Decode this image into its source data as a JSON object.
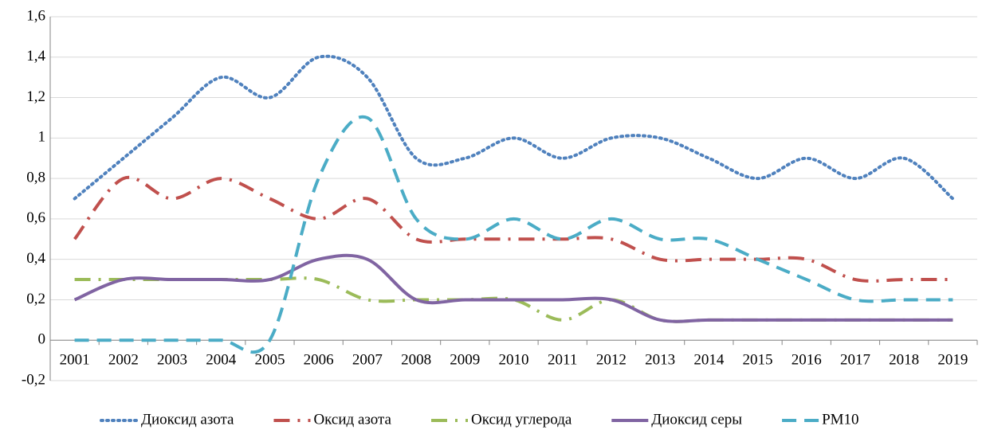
{
  "chart_data": {
    "type": "line",
    "categories": [
      "2001",
      "2002",
      "2003",
      "2004",
      "2005",
      "2006",
      "2007",
      "2008",
      "2009",
      "2010",
      "2011",
      "2012",
      "2013",
      "2014",
      "2015",
      "2016",
      "2017",
      "2018",
      "2019"
    ],
    "series": [
      {
        "name": "Диоксид азота",
        "color": "#4f81bd",
        "style": "dotted",
        "values": [
          0.7,
          0.9,
          1.1,
          1.3,
          1.2,
          1.4,
          1.3,
          0.9,
          0.9,
          1.0,
          0.9,
          1.0,
          1.0,
          0.9,
          0.8,
          0.9,
          0.8,
          0.9,
          0.7
        ]
      },
      {
        "name": "Оксид азота",
        "color": "#c0504d",
        "style": "dash-dot",
        "values": [
          0.5,
          0.8,
          0.7,
          0.8,
          0.7,
          0.6,
          0.7,
          0.5,
          0.5,
          0.5,
          0.5,
          0.5,
          0.4,
          0.4,
          0.4,
          0.4,
          0.3,
          0.3,
          0.3
        ]
      },
      {
        "name": "Оксид углерода",
        "color": "#9bbb59",
        "style": "dash-dot",
        "values": [
          0.3,
          0.3,
          0.3,
          0.3,
          0.3,
          0.3,
          0.2,
          0.2,
          0.2,
          0.2,
          0.1,
          0.2,
          0.1,
          0.1,
          0.1,
          0.1,
          0.1,
          0.1,
          0.1
        ]
      },
      {
        "name": "Диоксид серы",
        "color": "#8064a2",
        "style": "solid",
        "values": [
          0.2,
          0.3,
          0.3,
          0.3,
          0.3,
          0.4,
          0.4,
          0.2,
          0.2,
          0.2,
          0.2,
          0.2,
          0.1,
          0.1,
          0.1,
          0.1,
          0.1,
          0.1,
          0.1
        ]
      },
      {
        "name": "PM10",
        "color": "#4bacc6",
        "style": "dashed",
        "values": [
          0,
          0,
          0,
          0,
          0,
          0.8,
          1.1,
          0.6,
          0.5,
          0.6,
          0.5,
          0.6,
          0.5,
          0.5,
          0.4,
          0.3,
          0.2,
          0.2,
          0.2
        ]
      }
    ],
    "ylim": [
      -0.2,
      1.6
    ],
    "yticks": [
      {
        "value": -0.2,
        "label": "-0,2"
      },
      0,
      {
        "value": 0.2,
        "label": "0,2"
      },
      {
        "value": 0.4,
        "label": "0,4"
      },
      {
        "value": 0.6,
        "label": "0,6"
      },
      {
        "value": 0.8,
        "label": "0,8"
      },
      1,
      {
        "value": 1.2,
        "label": "1,2"
      },
      {
        "value": 1.4,
        "label": "1,4"
      },
      {
        "value": 1.6,
        "label": "1,6"
      }
    ],
    "grid": true,
    "smooth": true,
    "legend": "bottom"
  }
}
